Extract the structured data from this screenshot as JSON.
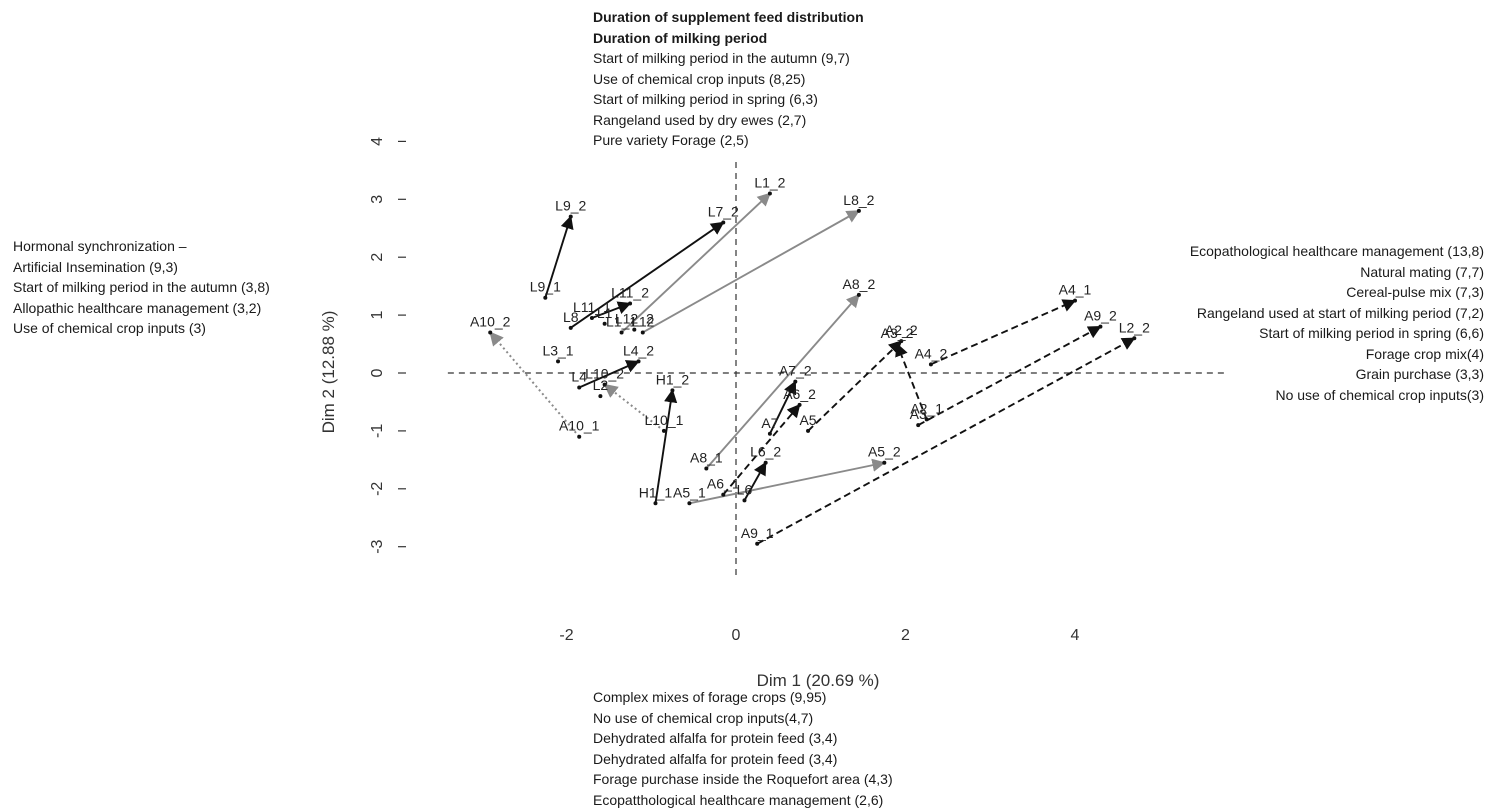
{
  "chart_data": {
    "type": "scatter",
    "xlabel": "Dim 1 (20.69 %)",
    "ylabel": "Dim 2 (12.88 %)",
    "xlim": [
      -3.4,
      5.7
    ],
    "ylim": [
      -3.6,
      4.2
    ],
    "xticks": [
      -2,
      0,
      2,
      4
    ],
    "yticks": [
      -3,
      -2,
      -1,
      0,
      1,
      2,
      3,
      4
    ],
    "reference_lines": {
      "x": 0,
      "y": 0,
      "style": "dashed"
    },
    "colors": {
      "black": "#111111",
      "grey": "#8a8a8a"
    },
    "points": [
      {
        "label": "L9_1",
        "x": -2.25,
        "y": 1.3
      },
      {
        "label": "L9_2",
        "x": -1.95,
        "y": 2.7
      },
      {
        "label": "L7_2",
        "x": -0.15,
        "y": 2.6
      },
      {
        "label": "L1_2",
        "x": 0.4,
        "y": 3.1
      },
      {
        "label": "L8_2",
        "x": 1.45,
        "y": 2.8
      },
      {
        "label": "L11_2",
        "x": -1.25,
        "y": 1.2
      },
      {
        "label": "L11_1",
        "x": -1.7,
        "y": 0.95
      },
      {
        "label": "L8",
        "x": -1.95,
        "y": 0.78
      },
      {
        "label": "L1",
        "x": -1.55,
        "y": 0.85
      },
      {
        "label": "L12_2",
        "x": -1.2,
        "y": 0.75
      },
      {
        "label": "L1_1",
        "x": -1.35,
        "y": 0.7
      },
      {
        "label": "L12",
        "x": -1.1,
        "y": 0.7
      },
      {
        "label": "A10_2",
        "x": -2.9,
        "y": 0.7
      },
      {
        "label": "L3_1",
        "x": -2.1,
        "y": 0.2
      },
      {
        "label": "L4_2",
        "x": -1.15,
        "y": 0.2
      },
      {
        "label": "L4",
        "x": -1.85,
        "y": -0.25
      },
      {
        "label": "L10_2",
        "x": -1.55,
        "y": -0.2
      },
      {
        "label": "L2",
        "x": -1.6,
        "y": -0.4
      },
      {
        "label": "H1_2",
        "x": -0.75,
        "y": -0.3
      },
      {
        "label": "A10_1",
        "x": -1.85,
        "y": -1.1
      },
      {
        "label": "L10_1",
        "x": -0.85,
        "y": -1.0
      },
      {
        "label": "H1_1",
        "x": -0.95,
        "y": -2.25
      },
      {
        "label": "A5_1",
        "x": -0.55,
        "y": -2.25
      },
      {
        "label": "A8_1",
        "x": -0.35,
        "y": -1.65
      },
      {
        "label": "A6_1",
        "x": -0.15,
        "y": -2.1
      },
      {
        "label": "L6",
        "x": 0.1,
        "y": -2.2
      },
      {
        "label": "L6_2",
        "x": 0.35,
        "y": -1.55
      },
      {
        "label": "A7_2",
        "x": 0.7,
        "y": -0.15
      },
      {
        "label": "A7",
        "x": 0.4,
        "y": -1.05
      },
      {
        "label": "A6_2",
        "x": 0.75,
        "y": -0.55
      },
      {
        "label": "A5",
        "x": 0.85,
        "y": -1.0
      },
      {
        "label": "A8_2",
        "x": 1.45,
        "y": 1.35
      },
      {
        "label": "A5_2",
        "x": 1.75,
        "y": -1.55
      },
      {
        "label": "A9_1",
        "x": 0.25,
        "y": -2.95
      },
      {
        "label": "A2_2",
        "x": 1.95,
        "y": 0.55
      },
      {
        "label": "A3_2",
        "x": 1.9,
        "y": 0.5
      },
      {
        "label": "A4_2",
        "x": 2.3,
        "y": 0.15
      },
      {
        "label": "A2_1",
        "x": 2.25,
        "y": -0.8
      },
      {
        "label": "A3",
        "x": 2.15,
        "y": -0.9
      },
      {
        "label": "A4_1",
        "x": 4.0,
        "y": 1.25
      },
      {
        "label": "A9_2",
        "x": 4.3,
        "y": 0.8
      },
      {
        "label": "L2_2",
        "x": 4.7,
        "y": 0.6
      }
    ],
    "arrows": [
      {
        "from": "L9_1",
        "to": "L9_2",
        "style": "solid",
        "color": "black"
      },
      {
        "from": "L8",
        "to": "L7_2",
        "style": "solid",
        "color": "black"
      },
      {
        "from": "L1_1",
        "to": "L1_2",
        "style": "solid",
        "color": "grey"
      },
      {
        "from": "L12",
        "to": "L8_2",
        "style": "solid",
        "color": "grey"
      },
      {
        "from": "L11_1",
        "to": "L11_2",
        "style": "solid",
        "color": "black"
      },
      {
        "from": "L4",
        "to": "L4_2",
        "style": "solid",
        "color": "black"
      },
      {
        "from": "L10_1",
        "to": "L10_2",
        "style": "dotted",
        "color": "grey"
      },
      {
        "from": "A10_1",
        "to": "A10_2",
        "style": "dotted",
        "color": "grey"
      },
      {
        "from": "H1_1",
        "to": "H1_2",
        "style": "solid",
        "color": "black"
      },
      {
        "from": "A8_1",
        "to": "A8_2",
        "style": "solid",
        "color": "grey"
      },
      {
        "from": "A5_1",
        "to": "A5_2",
        "style": "solid",
        "color": "grey"
      },
      {
        "from": "A6_1",
        "to": "A6_2",
        "style": "dashed",
        "color": "black"
      },
      {
        "from": "L6",
        "to": "L6_2",
        "style": "solid",
        "color": "black"
      },
      {
        "from": "A7",
        "to": "A7_2",
        "style": "solid",
        "color": "black"
      },
      {
        "from": "A5",
        "to": "A2_2",
        "style": "dashed",
        "color": "black"
      },
      {
        "from": "A2_1",
        "to": "A3_2",
        "style": "dashed",
        "color": "black"
      },
      {
        "from": "A4_2",
        "to": "A4_1",
        "style": "dashed",
        "color": "black"
      },
      {
        "from": "A3",
        "to": "A9_2",
        "style": "dashed",
        "color": "black"
      },
      {
        "from": "A9_1",
        "to": "L2_2",
        "style": "dashed",
        "color": "black"
      }
    ]
  },
  "annotations": {
    "top": {
      "bold": [
        "Duration of supplement feed distribution",
        "Duration of milking period"
      ],
      "lines": [
        "Start of milking period in the autumn (9,7)",
        "Use of chemical crop inputs (8,25)",
        "Start of milking period in spring (6,3)",
        "Rangeland used by dry ewes (2,7)",
        "Pure variety Forage (2,5)"
      ]
    },
    "bottom": [
      "Complex mixes of forage crops (9,95)",
      "No use of chemical crop inputs(4,7)",
      "Dehydrated alfalfa for protein feed (3,4)",
      "Dehydrated alfalfa for protein feed (3,4)",
      "Forage purchase inside the Roquefort area (4,3)",
      "Ecopatthological healthcare management (2,6)"
    ],
    "left": [
      "Hormonal synchronization –",
      "Artificial Insemination (9,3)",
      "Start of milking period in the autumn (3,8)",
      "Allopathic healthcare management (3,2)",
      "Use of chemical crop inputs (3)"
    ],
    "right": [
      "Ecopathological healthcare management (13,8)",
      "Natural mating (7,7)",
      "Cereal-pulse mix (7,3)",
      "Rangeland used at start of milking period (7,2)",
      "Start of milking period in spring (6,6)",
      "Forage crop mix(4)",
      "Grain purchase (3,3)",
      "No use of chemical crop inputs(3)"
    ]
  }
}
